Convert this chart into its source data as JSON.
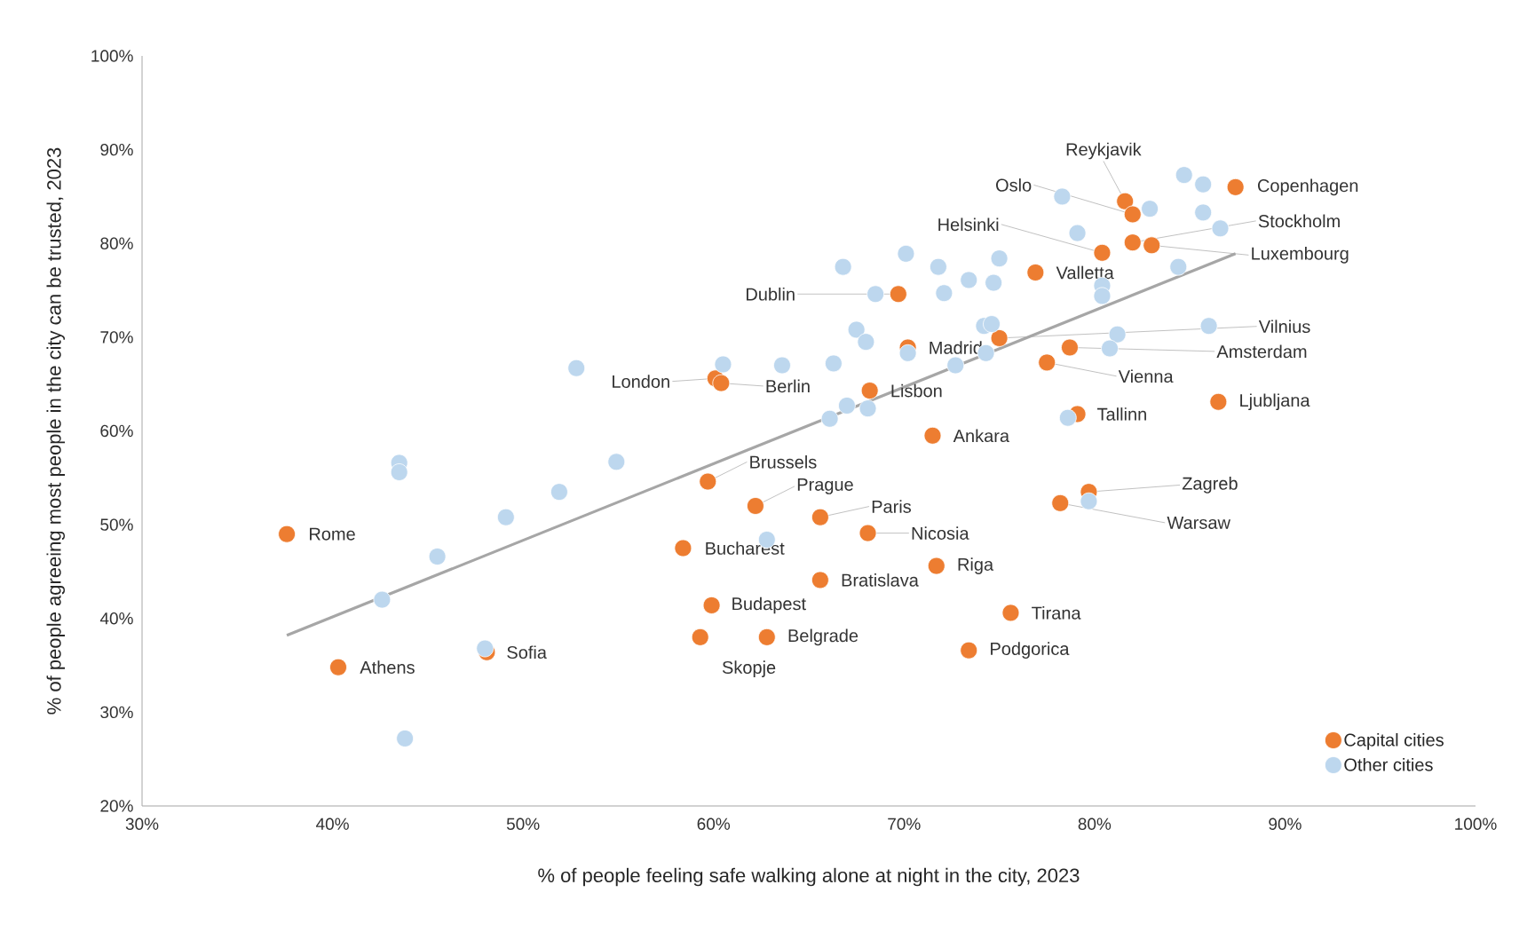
{
  "chart_data": {
    "type": "scatter",
    "xlabel": "% of people feeling safe walking alone at night in the city, 2023",
    "ylabel": "% of people agreeing most people in the city can be trusted, 2023",
    "xlim": [
      30,
      100
    ],
    "ylim": [
      20,
      100
    ],
    "xticks": [
      {
        "value": 30,
        "label": "30%"
      },
      {
        "value": 40,
        "label": "40%"
      },
      {
        "value": 50,
        "label": "50%"
      },
      {
        "value": 60,
        "label": "60%"
      },
      {
        "value": 70,
        "label": "70%"
      },
      {
        "value": 80,
        "label": "80%"
      },
      {
        "value": 90,
        "label": "90%"
      },
      {
        "value": 100,
        "label": "100%"
      }
    ],
    "yticks": [
      {
        "value": 20,
        "label": "20%"
      },
      {
        "value": 30,
        "label": "30%"
      },
      {
        "value": 40,
        "label": "40%"
      },
      {
        "value": 50,
        "label": "50%"
      },
      {
        "value": 60,
        "label": "60%"
      },
      {
        "value": 70,
        "label": "70%"
      },
      {
        "value": 80,
        "label": "80%"
      },
      {
        "value": 90,
        "label": "90%"
      },
      {
        "value": 100,
        "label": "100%"
      }
    ],
    "grid": false,
    "legend": "bottom right",
    "series": [
      {
        "type": "line",
        "color": "#a6a6a6",
        "line_style": "solid",
        "marker": "none",
        "x": [
          37.6,
          87.4
        ],
        "values": [
          38.2,
          78.9
        ]
      },
      {
        "name": "Capital cities",
        "color": "#ed7d31",
        "marker": "circle",
        "x": [
          87.4,
          81.6,
          82.0,
          82.0,
          83.0,
          80.4,
          76.9,
          69.7,
          75.0,
          70.2,
          78.7,
          77.5,
          60.1,
          60.4,
          68.2,
          86.5,
          79.1,
          71.5,
          59.7,
          79.7,
          78.2,
          62.2,
          65.6,
          37.6,
          68.1,
          58.4,
          71.7,
          65.6,
          59.9,
          75.6,
          59.3,
          62.8,
          73.4,
          48.1,
          40.3
        ],
        "values": [
          86.0,
          84.5,
          83.1,
          80.1,
          79.8,
          79.0,
          76.9,
          74.6,
          69.9,
          68.9,
          68.9,
          67.3,
          65.6,
          65.1,
          64.3,
          63.1,
          61.8,
          59.5,
          54.6,
          53.5,
          52.3,
          52.0,
          50.8,
          49.0,
          49.1,
          47.5,
          45.6,
          44.1,
          41.4,
          40.6,
          38.0,
          38.0,
          36.6,
          36.4,
          34.8
        ]
      },
      {
        "name": "Other cities",
        "color": "#bdd7ee",
        "marker": "circle",
        "x": [
          84.7,
          85.7,
          78.3,
          82.9,
          85.7,
          86.6,
          79.1,
          70.1,
          66.8,
          71.8,
          75.0,
          84.4,
          73.4,
          74.7,
          80.4,
          80.4,
          68.5,
          72.1,
          67.5,
          74.2,
          74.6,
          86.0,
          81.2,
          68.0,
          80.8,
          70.2,
          74.3,
          60.5,
          63.6,
          66.3,
          72.7,
          52.8,
          67.0,
          68.1,
          66.1,
          78.6,
          43.5,
          54.9,
          43.5,
          51.9,
          79.7,
          49.1,
          62.8,
          45.5,
          42.6,
          48.0,
          43.8
        ],
        "values": [
          87.3,
          86.3,
          85.0,
          83.7,
          83.3,
          81.6,
          81.1,
          78.9,
          77.5,
          77.5,
          78.4,
          77.5,
          76.1,
          75.8,
          75.5,
          74.4,
          74.6,
          74.7,
          70.8,
          71.2,
          71.4,
          71.2,
          70.3,
          69.5,
          68.8,
          68.3,
          68.3,
          67.1,
          67.0,
          67.2,
          67.0,
          66.7,
          62.7,
          62.4,
          61.3,
          61.4,
          56.6,
          56.7,
          55.6,
          53.5,
          52.5,
          50.8,
          48.4,
          46.6,
          42.0,
          36.8,
          27.2
        ]
      }
    ],
    "annotations": [
      {
        "text": "Copenhagen",
        "x": 87.4,
        "y": 86.0
      },
      {
        "text": "Reykjavik",
        "x": 81.6,
        "y": 84.5
      },
      {
        "text": "Oslo",
        "x": 82.0,
        "y": 83.1
      },
      {
        "text": "Stockholm",
        "x": 82.0,
        "y": 80.1
      },
      {
        "text": "Luxembourg",
        "x": 83.0,
        "y": 79.8
      },
      {
        "text": "Helsinki",
        "x": 80.4,
        "y": 79.0
      },
      {
        "text": "Valletta",
        "x": 76.9,
        "y": 76.9
      },
      {
        "text": "Dublin",
        "x": 69.7,
        "y": 74.6
      },
      {
        "text": "Vilnius",
        "x": 75.0,
        "y": 69.9
      },
      {
        "text": "Madrid",
        "x": 70.2,
        "y": 68.9
      },
      {
        "text": "Amsterdam",
        "x": 78.7,
        "y": 68.9
      },
      {
        "text": "Vienna",
        "x": 77.5,
        "y": 67.3
      },
      {
        "text": "London",
        "x": 60.1,
        "y": 65.6
      },
      {
        "text": "Berlin",
        "x": 60.4,
        "y": 65.1
      },
      {
        "text": "Lisbon",
        "x": 68.2,
        "y": 64.3
      },
      {
        "text": "Ljubljana",
        "x": 86.5,
        "y": 63.1
      },
      {
        "text": "Tallinn",
        "x": 79.1,
        "y": 61.8
      },
      {
        "text": "Ankara",
        "x": 71.5,
        "y": 59.5
      },
      {
        "text": "Brussels",
        "x": 59.7,
        "y": 54.6
      },
      {
        "text": "Zagreb",
        "x": 79.7,
        "y": 53.5
      },
      {
        "text": "Warsaw",
        "x": 78.2,
        "y": 52.3
      },
      {
        "text": "Prague",
        "x": 62.2,
        "y": 52.0
      },
      {
        "text": "Paris",
        "x": 65.6,
        "y": 50.8
      },
      {
        "text": "Rome",
        "x": 37.6,
        "y": 49.0
      },
      {
        "text": "Nicosia",
        "x": 68.1,
        "y": 49.1
      },
      {
        "text": "Bucharest",
        "x": 58.4,
        "y": 47.5
      },
      {
        "text": "Riga",
        "x": 71.7,
        "y": 45.6
      },
      {
        "text": "Bratislava",
        "x": 65.6,
        "y": 44.1
      },
      {
        "text": "Budapest",
        "x": 59.9,
        "y": 41.4
      },
      {
        "text": "Tirana",
        "x": 75.6,
        "y": 40.6
      },
      {
        "text": "Skopje",
        "x": 59.3,
        "y": 38.0
      },
      {
        "text": "Belgrade",
        "x": 62.8,
        "y": 38.0
      },
      {
        "text": "Podgorica",
        "x": 73.4,
        "y": 36.6
      },
      {
        "text": "Sofia",
        "x": 48.1,
        "y": 36.4
      },
      {
        "text": "Athens",
        "x": 40.3,
        "y": 34.8
      }
    ]
  }
}
